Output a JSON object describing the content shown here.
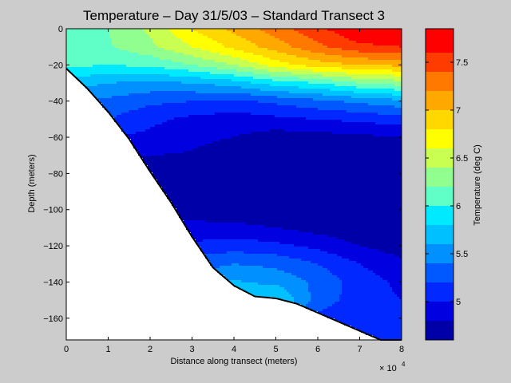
{
  "chart_data": {
    "type": "heatmap",
    "subtype": "filled-contour",
    "title": "Temperature – Day 31/5/03 – Standard Transect 3",
    "xlabel": "Distance along transect (meters)",
    "ylabel": "Depth (meters)",
    "x_exponent_label": "× 10",
    "x_exponent_power": "4",
    "xlim": [
      0,
      8
    ],
    "ylim": [
      -172,
      0
    ],
    "xticks": [
      0,
      1,
      2,
      3,
      4,
      5,
      6,
      7,
      8
    ],
    "yticks": [
      0,
      -20,
      -40,
      -60,
      -80,
      -100,
      -120,
      -140,
      -160
    ],
    "xtick_labels": [
      "0",
      "1",
      "2",
      "3",
      "4",
      "5",
      "6",
      "7",
      "8"
    ],
    "ytick_labels": [
      "0",
      "−20",
      "−40",
      "−60",
      "−80",
      "−100",
      "−120",
      "−140",
      "−160"
    ],
    "colorbar": {
      "label": "Temperature (deg C)",
      "range": [
        4.6,
        7.85
      ],
      "tick_values": [
        5,
        5.5,
        6,
        6.5,
        7,
        7.5
      ],
      "tick_labels": [
        "5",
        "5.5",
        "6",
        "6.5",
        "7",
        "7.5"
      ],
      "levels": [
        4.6,
        4.8,
        5.0,
        5.2,
        5.4,
        5.6,
        5.8,
        6.0,
        6.2,
        6.4,
        6.6,
        6.8,
        7.0,
        7.2,
        7.4,
        7.6,
        7.85
      ],
      "colors": [
        "#0000a8",
        "#0000e0",
        "#0028ff",
        "#0058ff",
        "#0090ff",
        "#00c0ff",
        "#00eaff",
        "#60ffc8",
        "#90ff90",
        "#c8ff50",
        "#ffff00",
        "#ffd800",
        "#ffa800",
        "#ff7800",
        "#ff3c00",
        "#ff0000",
        "#c00000"
      ]
    },
    "bathymetry": {
      "x": [
        0,
        0.5,
        1.0,
        1.5,
        2.0,
        2.5,
        3.0,
        3.5,
        4.0,
        4.5,
        5.0,
        5.5,
        6.0,
        6.5,
        7.0,
        7.5,
        8.0
      ],
      "depth": [
        -22,
        -33,
        -46,
        -61,
        -79,
        -96,
        -115,
        -132,
        -142,
        -148,
        -149,
        -152,
        -157,
        -162,
        -167,
        -172,
        -172
      ]
    },
    "temperature_profiles": {
      "x": [
        0,
        1,
        2,
        3,
        4,
        5,
        6,
        7,
        8
      ],
      "depth": [
        0,
        -10,
        -20,
        -30,
        -40,
        -50,
        -60,
        -70,
        -80,
        -90,
        -100,
        -110,
        -120,
        -130,
        -140,
        -150,
        -160,
        -172
      ],
      "values": [
        [
          6.15,
          6.15,
          6.05,
          5.7,
          5.45,
          5.25,
          5.05,
          4.85,
          4.75,
          4.75,
          4.8,
          4.95,
          5.15,
          5.25,
          5.3,
          5.3,
          5.2,
          5.1
        ],
        [
          6.2,
          6.18,
          6.0,
          5.6,
          5.35,
          5.2,
          5.0,
          4.82,
          4.72,
          4.7,
          4.75,
          4.9,
          5.1,
          5.25,
          5.35,
          5.4,
          5.3,
          5.15
        ],
        [
          6.45,
          6.35,
          6.05,
          5.55,
          5.25,
          5.05,
          4.95,
          4.8,
          4.72,
          4.68,
          4.72,
          4.85,
          5.05,
          5.25,
          5.4,
          5.45,
          5.35,
          5.2
        ],
        [
          6.8,
          6.6,
          6.2,
          5.6,
          5.2,
          4.95,
          4.85,
          4.78,
          4.7,
          4.68,
          4.72,
          4.85,
          5.05,
          5.3,
          5.5,
          5.55,
          5.4,
          5.25
        ],
        [
          7.05,
          6.85,
          6.4,
          5.7,
          5.15,
          4.9,
          4.8,
          4.68,
          4.62,
          4.62,
          4.68,
          4.85,
          5.1,
          5.4,
          5.62,
          5.7,
          5.5,
          5.3
        ],
        [
          7.3,
          7.1,
          6.7,
          5.9,
          5.25,
          4.95,
          4.7,
          4.6,
          4.6,
          4.6,
          4.65,
          4.8,
          5.05,
          5.35,
          5.55,
          5.85,
          5.6,
          5.4
        ],
        [
          7.55,
          7.35,
          6.9,
          6.0,
          5.35,
          5.0,
          4.72,
          4.6,
          4.58,
          4.58,
          4.6,
          4.72,
          4.95,
          5.2,
          5.35,
          5.3,
          5.15,
          5.05
        ],
        [
          7.8,
          7.55,
          7.0,
          6.2,
          5.45,
          5.05,
          4.75,
          4.6,
          4.58,
          4.58,
          4.6,
          4.65,
          4.8,
          5.0,
          5.1,
          5.1,
          5.05,
          5.0
        ],
        [
          7.85,
          7.6,
          7.05,
          6.3,
          5.55,
          5.1,
          4.8,
          4.62,
          4.58,
          4.58,
          4.6,
          4.62,
          4.7,
          4.85,
          4.95,
          5.0,
          5.0,
          5.0
        ]
      ]
    }
  }
}
